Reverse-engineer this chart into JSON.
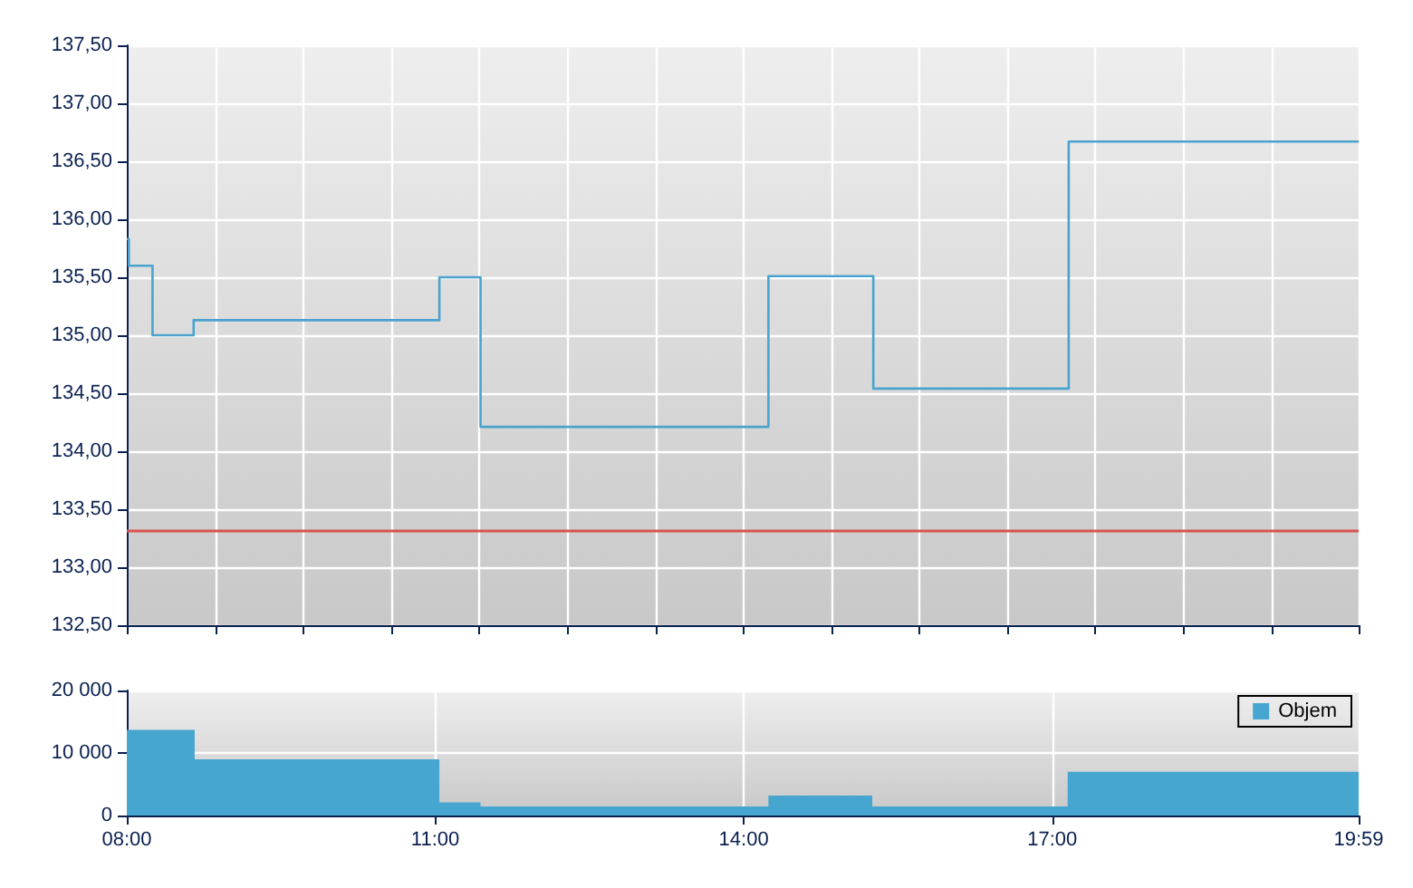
{
  "chart_data": [
    {
      "type": "step",
      "x": [
        8,
        8.02,
        8.25,
        8.65,
        11.04,
        11.44,
        14.24,
        15.26,
        17.16,
        19.98
      ],
      "values": [
        135.83,
        135.6,
        135.0,
        135.13,
        135.5,
        134.21,
        135.51,
        134.54,
        136.67,
        136.67
      ],
      "color": "#4aa3cf",
      "xlim": [
        8,
        19.98
      ],
      "xticks": [
        {
          "value": 8,
          "label": null
        },
        {
          "value": 8.86,
          "label": null
        },
        {
          "value": 9.71,
          "label": null
        },
        {
          "value": 10.57,
          "label": null
        },
        {
          "value": 11.42,
          "label": null
        },
        {
          "value": 12.28,
          "label": null
        },
        {
          "value": 13.14,
          "label": null
        },
        {
          "value": 13.99,
          "label": null
        },
        {
          "value": 14.85,
          "label": null
        },
        {
          "value": 15.7,
          "label": null
        },
        {
          "value": 16.56,
          "label": null
        },
        {
          "value": 17.42,
          "label": null
        },
        {
          "value": 18.27,
          "label": null
        },
        {
          "value": 19.13,
          "label": null
        },
        {
          "value": 19.98,
          "label": null
        }
      ],
      "ylim": [
        132.5,
        137.5
      ],
      "yticks": [
        {
          "value": 132.5,
          "label": "132,50"
        },
        {
          "value": 133,
          "label": "133,00"
        },
        {
          "value": 133.5,
          "label": "133,50"
        },
        {
          "value": 134,
          "label": "134,00"
        },
        {
          "value": 134.5,
          "label": "134,50"
        },
        {
          "value": 135,
          "label": "135,00"
        },
        {
          "value": 135.5,
          "label": "135,50"
        },
        {
          "value": 136,
          "label": "136,00"
        },
        {
          "value": 136.5,
          "label": "136,50"
        },
        {
          "value": 137,
          "label": "137,00"
        },
        {
          "value": 137.5,
          "label": "137,50"
        }
      ],
      "ref_lines": [
        {
          "axis": "y",
          "value": 133.32,
          "label": null,
          "color": "#d9534f"
        }
      ],
      "grid": true,
      "tick_labels": "y",
      "legend": false
    },
    {
      "type": "area",
      "x": [
        8,
        8.66,
        11.04,
        11.44,
        14.24,
        15.25,
        17.15,
        19.98
      ],
      "series": [
        {
          "name": "Objem",
          "color": "#46a6cf",
          "values": [
            13700,
            9000,
            2100,
            1450,
            3200,
            1450,
            7000,
            7000
          ]
        }
      ],
      "xlim": [
        8,
        19.98
      ],
      "xticks": [
        {
          "value": 8,
          "label": "08:00"
        },
        {
          "value": 11,
          "label": "11:00"
        },
        {
          "value": 14,
          "label": "14:00"
        },
        {
          "value": 17,
          "label": "17:00"
        },
        {
          "value": 19.98,
          "label": "19:59"
        }
      ],
      "ylim": [
        0,
        20000
      ],
      "yticks": [
        {
          "value": 0,
          "label": "0"
        },
        {
          "value": 10000,
          "label": "10 000"
        },
        {
          "value": 20000,
          "label": "20 000"
        }
      ],
      "grid": true,
      "legend": "top right"
    }
  ]
}
